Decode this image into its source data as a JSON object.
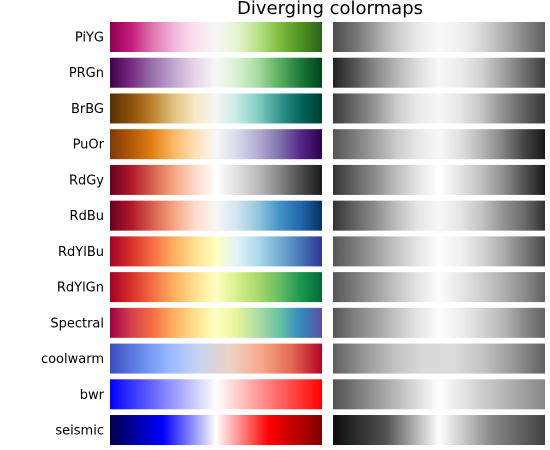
{
  "title": "Diverging colormaps",
  "colormaps": [
    {
      "name": "PiYG",
      "colors": [
        "#8e0152",
        "#c51b7d",
        "#de77ae",
        "#f1b6da",
        "#fde0ef",
        "#f7f7f7",
        "#e6f5d0",
        "#b8e186",
        "#7fbc41",
        "#4d9221",
        "#276419"
      ]
    },
    {
      "name": "PRGn",
      "colors": [
        "#40004b",
        "#762a83",
        "#9970ab",
        "#c2a5cf",
        "#e7d4e8",
        "#f7f7f7",
        "#d9f0d3",
        "#a6dba0",
        "#5aae61",
        "#1b7837",
        "#00441b"
      ]
    },
    {
      "name": "BrBG",
      "colors": [
        "#543005",
        "#8c510a",
        "#bf812d",
        "#dfc27d",
        "#f6e8c3",
        "#f5f5f5",
        "#c7eae5",
        "#80cdc1",
        "#35978f",
        "#01665e",
        "#003c30"
      ]
    },
    {
      "name": "PuOr",
      "colors": [
        "#7f3b08",
        "#b35806",
        "#e08214",
        "#fdb863",
        "#fee0b6",
        "#f7f7f7",
        "#d8daeb",
        "#b2abd2",
        "#8073ac",
        "#542788",
        "#2d004b"
      ]
    },
    {
      "name": "RdGy",
      "colors": [
        "#67001f",
        "#b2182b",
        "#d6604d",
        "#f4a582",
        "#fddbc7",
        "#ffffff",
        "#e0e0e0",
        "#bababa",
        "#878787",
        "#4d4d4d",
        "#1a1a1a"
      ]
    },
    {
      "name": "RdBu",
      "colors": [
        "#67001f",
        "#b2182b",
        "#d6604d",
        "#f4a582",
        "#fddbc7",
        "#f7f7f7",
        "#d1e5f0",
        "#92c5de",
        "#4393c3",
        "#2166ac",
        "#053061"
      ]
    },
    {
      "name": "RdYlBu",
      "colors": [
        "#a50026",
        "#d73027",
        "#f46d43",
        "#fdae61",
        "#fee090",
        "#ffffbf",
        "#e0f3f8",
        "#abd9e9",
        "#74add1",
        "#4575b4",
        "#313695"
      ]
    },
    {
      "name": "RdYlGn",
      "colors": [
        "#a50026",
        "#d73027",
        "#f46d43",
        "#fdae61",
        "#fee08b",
        "#ffffbf",
        "#d9ef8b",
        "#a6d96a",
        "#66bd63",
        "#1a9850",
        "#006837"
      ]
    },
    {
      "name": "Spectral",
      "colors": [
        "#9e0142",
        "#d53e4f",
        "#f46d43",
        "#fdae61",
        "#fee08b",
        "#ffffbf",
        "#e6f598",
        "#abdda4",
        "#66c2a5",
        "#3288bd",
        "#5e4fa2"
      ]
    },
    {
      "name": "coolwarm",
      "colors": [
        "#3b4cc0",
        "#6788ee",
        "#9abbff",
        "#c9d7f0",
        "#edd1c2",
        "#f7a889",
        "#e26952",
        "#b40426"
      ]
    },
    {
      "name": "bwr",
      "colors": [
        "#0000ff",
        "#ffffff",
        "#ff0000"
      ]
    },
    {
      "name": "seismic",
      "colors": [
        "#00004c",
        "#0000ff",
        "#ffffff",
        "#ff0000",
        "#7f0000"
      ]
    }
  ]
}
